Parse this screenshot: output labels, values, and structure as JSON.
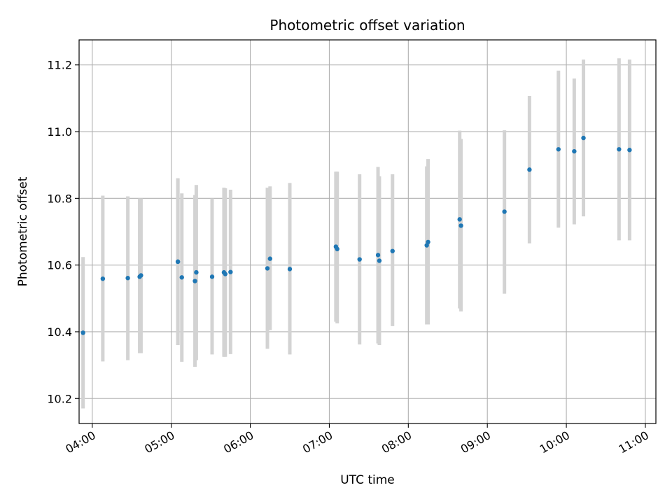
{
  "chart_data": {
    "type": "scatter",
    "title": "Photometric offset variation",
    "xlabel": "UTC time",
    "ylabel": "Photometric offset",
    "x_tick_labels": [
      "04:00",
      "05:00",
      "06:00",
      "07:00",
      "08:00",
      "09:00",
      "10:00",
      "11:00"
    ],
    "y_tick_labels": [
      "10.2",
      "10.4",
      "10.6",
      "10.8",
      "11.0",
      "11.2"
    ],
    "x_ticks": [
      "04:00",
      "05:00",
      "06:00",
      "07:00",
      "08:00",
      "09:00",
      "10:00",
      "11:00"
    ],
    "y_ticks": [
      10.2,
      10.4,
      10.6,
      10.8,
      11.0,
      11.2
    ],
    "xlim": [
      "03:50",
      "11:08"
    ],
    "ylim": [
      10.125,
      11.275
    ],
    "grid": true,
    "marker_color": "#1f77b4",
    "errorbar_color": "#d3d3d3",
    "points": [
      {
        "time": "03:53",
        "y": 10.397,
        "ylo": 10.17,
        "yhi": 10.624
      },
      {
        "time": "04:08",
        "y": 10.559,
        "ylo": 10.311,
        "yhi": 10.808
      },
      {
        "time": "04:27",
        "y": 10.561,
        "ylo": 10.315,
        "yhi": 10.806
      },
      {
        "time": "04:36",
        "y": 10.565,
        "ylo": 10.336,
        "yhi": 10.8
      },
      {
        "time": "04:37",
        "y": 10.569,
        "ylo": 10.336,
        "yhi": 10.8
      },
      {
        "time": "05:05",
        "y": 10.61,
        "ylo": 10.36,
        "yhi": 10.86
      },
      {
        "time": "05:05",
        "y": 10.61,
        "ylo": 10.36,
        "yhi": 10.86
      },
      {
        "time": "05:08",
        "y": 10.563,
        "ylo": 10.31,
        "yhi": 10.815
      },
      {
        "time": "05:18",
        "y": 10.552,
        "ylo": 10.295,
        "yhi": 10.81
      },
      {
        "time": "05:19",
        "y": 10.578,
        "ylo": 10.315,
        "yhi": 10.84
      },
      {
        "time": "05:31",
        "y": 10.565,
        "ylo": 10.332,
        "yhi": 10.8
      },
      {
        "time": "05:40",
        "y": 10.578,
        "ylo": 10.325,
        "yhi": 10.832
      },
      {
        "time": "05:41",
        "y": 10.573,
        "ylo": 10.325,
        "yhi": 10.83
      },
      {
        "time": "05:45",
        "y": 10.579,
        "ylo": 10.333,
        "yhi": 10.826
      },
      {
        "time": "06:13",
        "y": 10.59,
        "ylo": 10.349,
        "yhi": 10.832
      },
      {
        "time": "06:15",
        "y": 10.619,
        "ylo": 10.405,
        "yhi": 10.836
      },
      {
        "time": "06:30",
        "y": 10.588,
        "ylo": 10.332,
        "yhi": 10.846
      },
      {
        "time": "07:05",
        "y": 10.655,
        "ylo": 10.43,
        "yhi": 10.88
      },
      {
        "time": "07:06",
        "y": 10.648,
        "ylo": 10.425,
        "yhi": 10.88
      },
      {
        "time": "07:23",
        "y": 10.617,
        "ylo": 10.362,
        "yhi": 10.872
      },
      {
        "time": "07:37",
        "y": 10.63,
        "ylo": 10.365,
        "yhi": 10.894
      },
      {
        "time": "07:38",
        "y": 10.613,
        "ylo": 10.36,
        "yhi": 10.866
      },
      {
        "time": "07:48",
        "y": 10.642,
        "ylo": 10.417,
        "yhi": 10.872
      },
      {
        "time": "08:14",
        "y": 10.659,
        "ylo": 10.422,
        "yhi": 10.896
      },
      {
        "time": "08:15",
        "y": 10.669,
        "ylo": 10.422,
        "yhi": 10.918
      },
      {
        "time": "08:39",
        "y": 10.737,
        "ylo": 10.47,
        "yhi": 11.003
      },
      {
        "time": "08:40",
        "y": 10.718,
        "ylo": 10.461,
        "yhi": 10.978
      },
      {
        "time": "09:13",
        "y": 10.76,
        "ylo": 10.514,
        "yhi": 11.004
      },
      {
        "time": "09:32",
        "y": 10.886,
        "ylo": 10.665,
        "yhi": 11.107
      },
      {
        "time": "09:54",
        "y": 10.947,
        "ylo": 10.712,
        "yhi": 11.183
      },
      {
        "time": "10:06",
        "y": 10.941,
        "ylo": 10.722,
        "yhi": 11.159
      },
      {
        "time": "10:13",
        "y": 10.981,
        "ylo": 10.746,
        "yhi": 11.216
      },
      {
        "time": "10:40",
        "y": 10.947,
        "ylo": 10.674,
        "yhi": 11.22
      },
      {
        "time": "10:48",
        "y": 10.945,
        "ylo": 10.674,
        "yhi": 11.216
      }
    ]
  }
}
